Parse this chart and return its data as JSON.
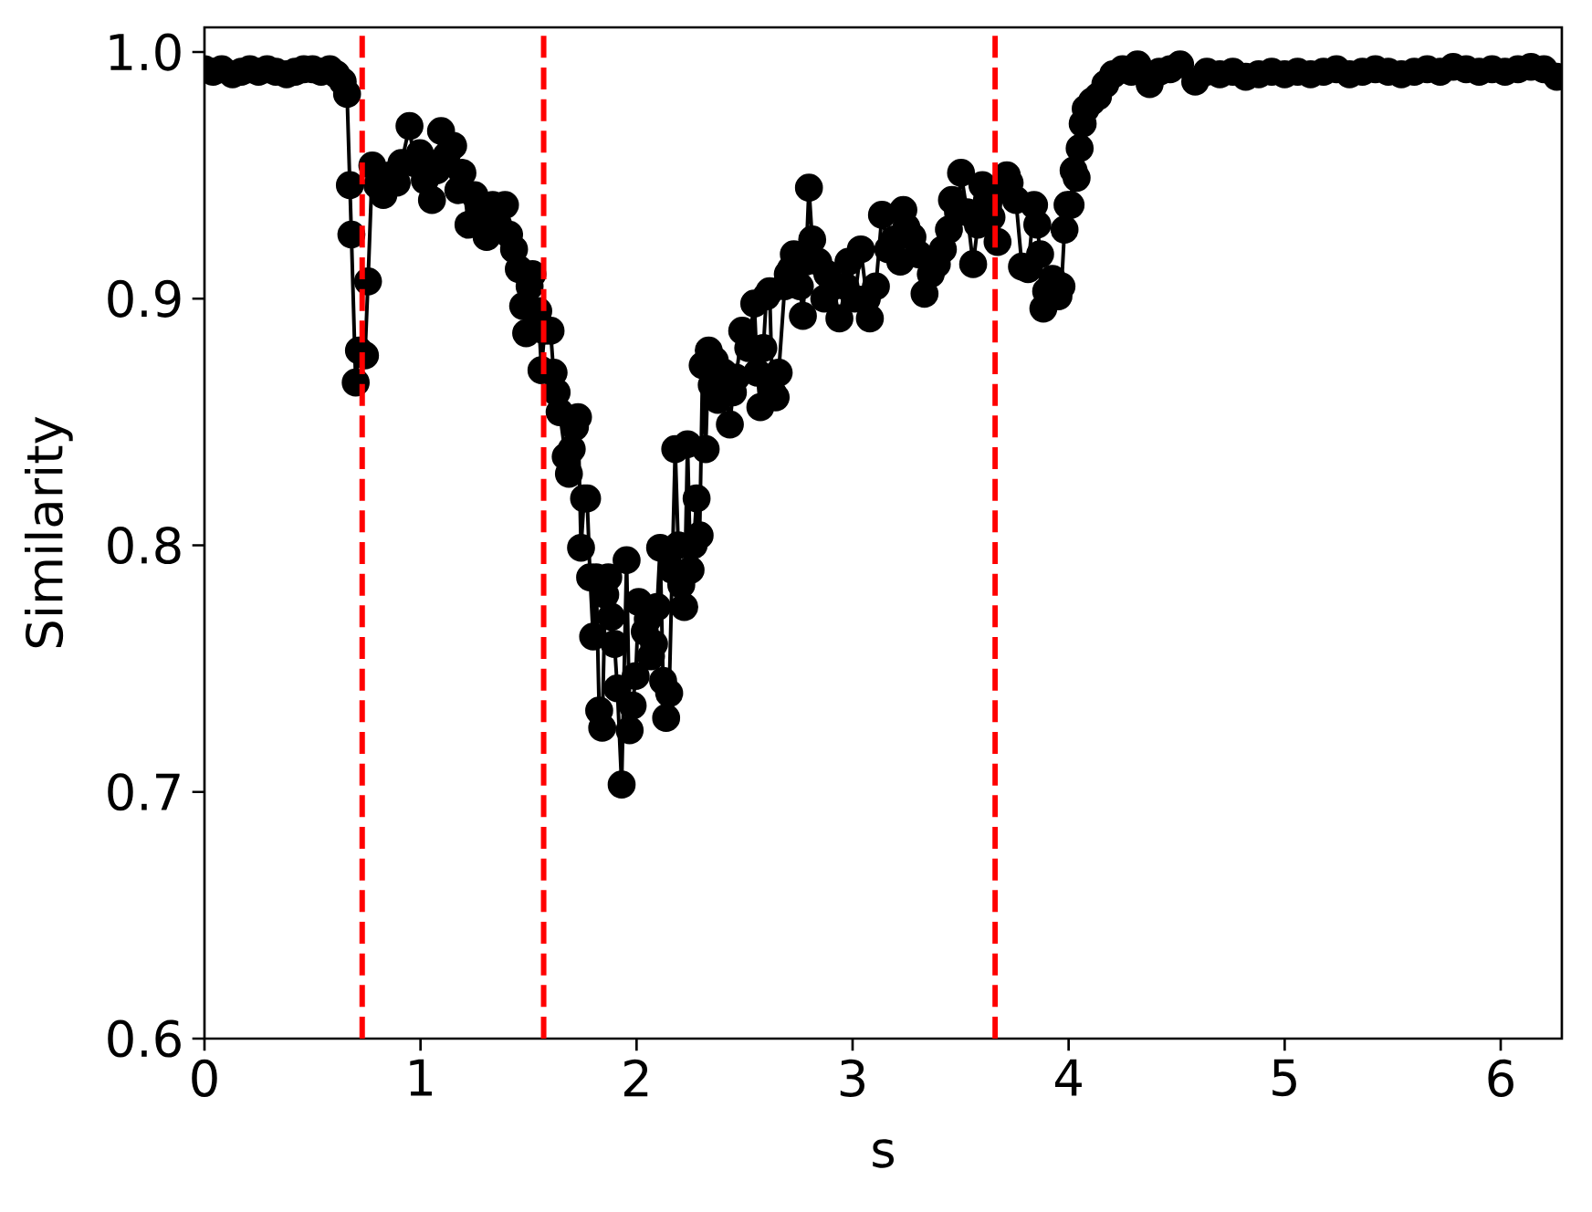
{
  "chart_data": {
    "type": "line",
    "xlabel": "s",
    "ylabel": "Similarity",
    "color": "#000000",
    "marker": "circle",
    "line_style": "solid",
    "xlim": [
      0,
      6.283
    ],
    "ylim": [
      0.6,
      1.01
    ],
    "xticks": [
      0,
      1,
      2,
      3,
      4,
      5,
      6
    ],
    "yticks": [
      0.6,
      0.7,
      0.8,
      0.9,
      {
        "value": 1,
        "label": "1.0"
      }
    ],
    "ref_lines": [
      {
        "axis": "x",
        "value": 0.73,
        "color": "#ff0000",
        "line_style": "dashed"
      },
      {
        "axis": "x",
        "value": 1.57,
        "color": "#ff0000",
        "line_style": "dashed"
      },
      {
        "axis": "x",
        "value": 3.66,
        "color": "#ff0000",
        "line_style": "dashed"
      }
    ],
    "x": [
      0,
      0.04,
      0.08,
      0.13,
      0.17,
      0.21,
      0.25,
      0.29,
      0.33,
      0.38,
      0.42,
      0.46,
      0.5,
      0.54,
      0.58,
      0.61,
      0.64,
      0.66,
      0.673,
      0.68,
      0.7,
      0.715,
      0.743,
      0.757,
      0.777,
      0.8,
      0.828,
      0.86,
      0.89,
      0.912,
      0.949,
      0.97,
      0.997,
      1.02,
      1.053,
      1.075,
      1.095,
      1.12,
      1.151,
      1.175,
      1.194,
      1.222,
      1.25,
      1.28,
      1.306,
      1.334,
      1.36,
      1.391,
      1.41,
      1.433,
      1.455,
      1.475,
      1.489,
      1.505,
      1.518,
      1.545,
      1.56,
      1.574,
      1.602,
      1.616,
      1.63,
      1.644,
      1.672,
      1.687,
      1.7,
      1.715,
      1.729,
      1.743,
      1.757,
      1.771,
      1.785,
      1.799,
      1.813,
      1.827,
      1.841,
      1.855,
      1.869,
      1.883,
      1.898,
      1.911,
      1.931,
      1.954,
      1.968,
      1.982,
      1.996,
      2.01,
      2.038,
      2.052,
      2.067,
      2.081,
      2.095,
      2.109,
      2.123,
      2.137,
      2.151,
      2.165,
      2.179,
      2.193,
      2.207,
      2.221,
      2.236,
      2.25,
      2.264,
      2.278,
      2.292,
      2.306,
      2.32,
      2.334,
      2.348,
      2.362,
      2.376,
      2.404,
      2.432,
      2.446,
      2.46,
      2.489,
      2.517,
      2.545,
      2.559,
      2.573,
      2.587,
      2.601,
      2.616,
      2.629,
      2.644,
      2.658,
      2.686,
      2.7,
      2.714,
      2.728,
      2.756,
      2.77,
      2.784,
      2.798,
      2.813,
      2.841,
      2.869,
      2.883,
      2.911,
      2.939,
      2.967,
      2.981,
      3.01,
      3.038,
      3.066,
      3.08,
      3.108,
      3.136,
      3.165,
      3.193,
      3.221,
      3.235,
      3.249,
      3.277,
      3.305,
      3.333,
      3.362,
      3.39,
      3.418,
      3.446,
      3.46,
      3.488,
      3.502,
      3.53,
      3.558,
      3.58,
      3.601,
      3.622,
      3.643,
      3.671,
      3.69,
      3.714,
      3.727,
      3.756,
      3.784,
      3.812,
      3.84,
      3.855,
      3.868,
      3.883,
      3.896,
      3.925,
      3.953,
      3.967,
      3.981,
      3.995,
      4.009,
      4.023,
      4.037,
      4.051,
      4.065,
      4.079,
      4.108,
      4.136,
      4.17,
      4.206,
      4.25,
      4.29,
      4.319,
      4.375,
      4.42,
      4.47,
      4.516,
      4.586,
      4.64,
      4.7,
      4.76,
      4.82,
      4.88,
      4.94,
      5.0,
      5.06,
      5.12,
      5.18,
      5.24,
      5.3,
      5.36,
      5.42,
      5.48,
      5.54,
      5.6,
      5.66,
      5.72,
      5.78,
      5.84,
      5.9,
      5.96,
      6.02,
      6.08,
      6.14,
      6.2,
      6.26
    ],
    "values": [
      0.993,
      0.992,
      0.993,
      0.991,
      0.992,
      0.993,
      0.992,
      0.993,
      0.992,
      0.991,
      0.992,
      0.993,
      0.993,
      0.992,
      0.993,
      0.991,
      0.988,
      0.983,
      0.946,
      0.926,
      0.866,
      0.879,
      0.877,
      0.907,
      0.954,
      0.946,
      0.942,
      0.95,
      0.947,
      0.955,
      0.97,
      0.955,
      0.959,
      0.948,
      0.94,
      0.952,
      0.968,
      0.958,
      0.962,
      0.944,
      0.951,
      0.93,
      0.942,
      0.936,
      0.925,
      0.938,
      0.93,
      0.938,
      0.926,
      0.92,
      0.912,
      0.897,
      0.886,
      0.905,
      0.91,
      0.895,
      0.871,
      0.887,
      0.887,
      0.87,
      0.862,
      0.854,
      0.836,
      0.829,
      0.839,
      0.848,
      0.852,
      0.799,
      0.819,
      0.819,
      0.787,
      0.763,
      0.787,
      0.733,
      0.726,
      0.78,
      0.787,
      0.771,
      0.76,
      0.742,
      0.703,
      0.794,
      0.725,
      0.735,
      0.747,
      0.777,
      0.765,
      0.77,
      0.755,
      0.76,
      0.775,
      0.799,
      0.745,
      0.73,
      0.74,
      0.79,
      0.839,
      0.8,
      0.784,
      0.775,
      0.841,
      0.79,
      0.8,
      0.819,
      0.804,
      0.873,
      0.839,
      0.879,
      0.865,
      0.875,
      0.859,
      0.87,
      0.849,
      0.862,
      0.868,
      0.887,
      0.88,
      0.898,
      0.87,
      0.856,
      0.88,
      0.901,
      0.903,
      0.862,
      0.86,
      0.87,
      0.905,
      0.91,
      0.912,
      0.918,
      0.905,
      0.893,
      0.915,
      0.945,
      0.924,
      0.915,
      0.9,
      0.91,
      0.905,
      0.892,
      0.905,
      0.915,
      0.9,
      0.92,
      0.9,
      0.892,
      0.905,
      0.934,
      0.92,
      0.924,
      0.915,
      0.936,
      0.929,
      0.925,
      0.918,
      0.902,
      0.91,
      0.914,
      0.92,
      0.928,
      0.94,
      0.935,
      0.951,
      0.935,
      0.914,
      0.93,
      0.946,
      0.94,
      0.933,
      0.923,
      0.945,
      0.95,
      0.947,
      0.94,
      0.913,
      0.912,
      0.938,
      0.93,
      0.918,
      0.896,
      0.903,
      0.908,
      0.901,
      0.905,
      0.928,
      0.938,
      0.938,
      0.952,
      0.949,
      0.961,
      0.971,
      0.977,
      0.98,
      0.982,
      0.987,
      0.991,
      0.993,
      0.992,
      0.995,
      0.987,
      0.992,
      0.993,
      0.995,
      0.988,
      0.992,
      0.991,
      0.992,
      0.99,
      0.991,
      0.992,
      0.991,
      0.992,
      0.991,
      0.992,
      0.993,
      0.991,
      0.992,
      0.993,
      0.992,
      0.991,
      0.992,
      0.993,
      0.992,
      0.994,
      0.993,
      0.992,
      0.993,
      0.992,
      0.993,
      0.994,
      0.993,
      0.99
    ]
  }
}
